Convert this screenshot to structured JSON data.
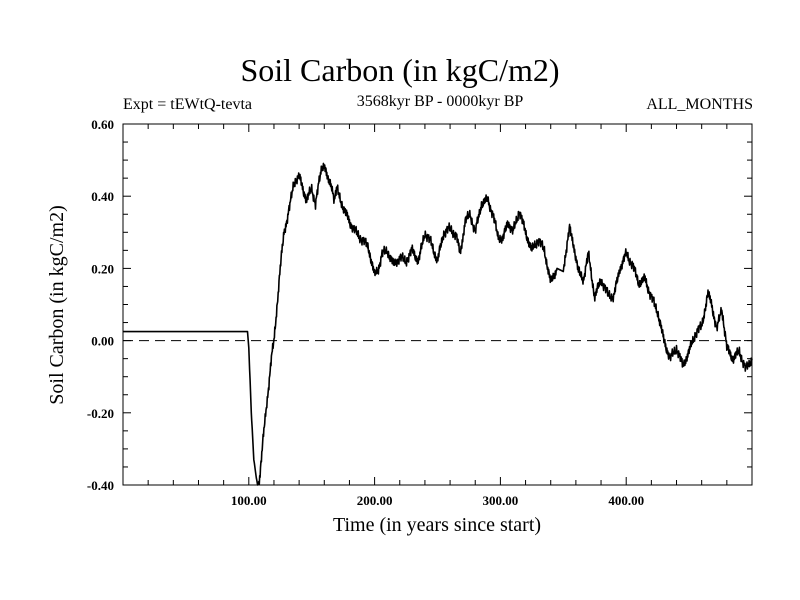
{
  "header": {
    "title": "Soil Carbon (in kgC/m2)",
    "experiment": "Expt = tEWtQ-tevta",
    "period": "3568kyr BP - 0000kyr BP",
    "months": "ALL_MONTHS"
  },
  "chart_data": {
    "type": "line",
    "title": "Soil Carbon (in kgC/m2)",
    "xlabel": "Time (in years since start)",
    "ylabel": "Soil Carbon (in kgC/m2)",
    "xlim": [
      0,
      500
    ],
    "ylim": [
      -0.4,
      0.6
    ],
    "x_ticks": [
      100,
      200,
      300,
      400
    ],
    "x_tick_labels": [
      "100.00",
      "200.00",
      "300.00",
      "400.00"
    ],
    "y_ticks": [
      -0.4,
      -0.2,
      0.0,
      0.2,
      0.4,
      0.6
    ],
    "y_tick_labels": [
      "-0.40",
      "-0.20",
      "0.00",
      "0.20",
      "0.40",
      "0.60"
    ],
    "reference_line": {
      "y": 0.0,
      "style": "dashed"
    },
    "series": [
      {
        "name": "Soil Carbon",
        "color": "#000000",
        "x": [
          0,
          99,
          100,
          102,
          104,
          106,
          107,
          108,
          109,
          110,
          112,
          114,
          116,
          118,
          120,
          122,
          125,
          128,
          130,
          133,
          136,
          140,
          143,
          146,
          150,
          153,
          156,
          158,
          160,
          163,
          166,
          168,
          170,
          173,
          176,
          180,
          185,
          190,
          195,
          200,
          203,
          206,
          210,
          215,
          220,
          225,
          230,
          235,
          240,
          245,
          250,
          255,
          260,
          265,
          268,
          272,
          276,
          280,
          285,
          290,
          294,
          298,
          302,
          306,
          310,
          315,
          320,
          325,
          330,
          335,
          340,
          345,
          350,
          355,
          358,
          362,
          366,
          370,
          375,
          380,
          385,
          390,
          395,
          400,
          405,
          410,
          415,
          420,
          425,
          430,
          435,
          440,
          445,
          450,
          455,
          460,
          465,
          468,
          472,
          476,
          480,
          485,
          490,
          495,
          500
        ],
        "y": [
          0.025,
          0.025,
          -0.02,
          -0.2,
          -0.33,
          -0.38,
          -0.4,
          -0.39,
          -0.37,
          -0.33,
          -0.25,
          -0.18,
          -0.12,
          -0.05,
          0.0,
          0.08,
          0.2,
          0.3,
          0.33,
          0.38,
          0.44,
          0.455,
          0.42,
          0.39,
          0.42,
          0.38,
          0.44,
          0.48,
          0.49,
          0.44,
          0.43,
          0.39,
          0.42,
          0.39,
          0.36,
          0.33,
          0.3,
          0.28,
          0.26,
          0.18,
          0.2,
          0.24,
          0.25,
          0.21,
          0.23,
          0.22,
          0.25,
          0.22,
          0.3,
          0.27,
          0.22,
          0.3,
          0.31,
          0.29,
          0.24,
          0.33,
          0.35,
          0.3,
          0.38,
          0.39,
          0.35,
          0.29,
          0.28,
          0.33,
          0.3,
          0.36,
          0.3,
          0.25,
          0.28,
          0.25,
          0.16,
          0.2,
          0.2,
          0.31,
          0.27,
          0.19,
          0.17,
          0.24,
          0.12,
          0.17,
          0.13,
          0.12,
          0.2,
          0.24,
          0.21,
          0.16,
          0.17,
          0.12,
          0.08,
          0.0,
          -0.05,
          -0.02,
          -0.07,
          -0.03,
          0.02,
          0.04,
          0.13,
          0.1,
          0.03,
          0.09,
          -0.02,
          -0.05,
          -0.03,
          -0.08,
          -0.05
        ]
      }
    ]
  }
}
